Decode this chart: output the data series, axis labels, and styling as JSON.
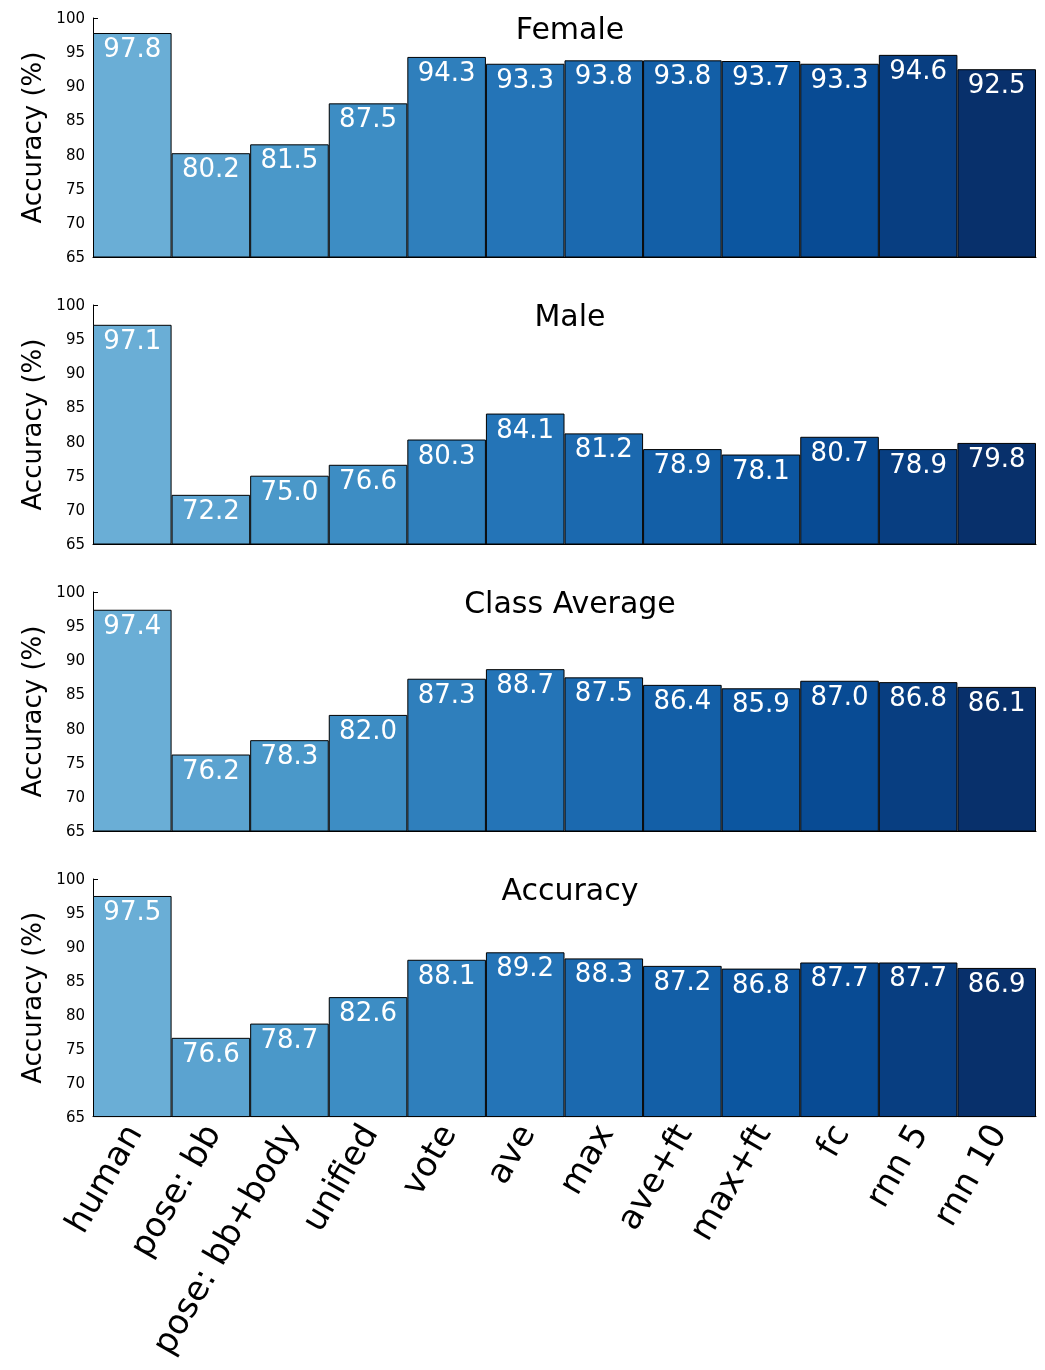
{
  "chart_data": [
    {
      "type": "bar",
      "title": "Female",
      "ylabel": "Accuracy (%)",
      "categories": [
        null,
        null,
        null,
        null,
        null,
        null,
        null,
        null,
        null,
        null,
        null,
        null
      ],
      "values": [
        97.8,
        80.2,
        81.5,
        87.5,
        94.3,
        93.3,
        93.8,
        93.8,
        93.7,
        93.3,
        94.6,
        92.5
      ],
      "value_labels": [
        "97.8",
        "80.2",
        "81.5",
        "87.5",
        "94.3",
        "93.3",
        "93.8",
        "93.8",
        "93.7",
        "93.3",
        "94.6",
        "92.5"
      ],
      "colors": [
        "#6aaed6",
        "#5ba3d0",
        "#4a98c9",
        "#3d8dc4",
        "#2f7fbc",
        "#2474b7",
        "#1b69af",
        "#135fa7",
        "#0c56a0",
        "#084b94",
        "#083e81",
        "#08306b"
      ],
      "ylim": [
        65,
        100
      ],
      "yticks": [
        65,
        70,
        75,
        80,
        85,
        90,
        95,
        100
      ],
      "grid": false,
      "tick_labels": "y"
    },
    {
      "type": "bar",
      "title": "Male",
      "ylabel": "Accuracy (%)",
      "categories": [
        null,
        null,
        null,
        null,
        null,
        null,
        null,
        null,
        null,
        null,
        null,
        null
      ],
      "values": [
        97.1,
        72.2,
        75.0,
        76.6,
        80.3,
        84.1,
        81.2,
        78.9,
        78.1,
        80.7,
        78.9,
        79.8
      ],
      "value_labels": [
        "97.1",
        "72.2",
        "75.0",
        "76.6",
        "80.3",
        "84.1",
        "81.2",
        "78.9",
        "78.1",
        "80.7",
        "78.9",
        "79.8"
      ],
      "colors": [
        "#6aaed6",
        "#5ba3d0",
        "#4a98c9",
        "#3d8dc4",
        "#2f7fbc",
        "#2474b7",
        "#1b69af",
        "#135fa7",
        "#0c56a0",
        "#084b94",
        "#083e81",
        "#08306b"
      ],
      "ylim": [
        65,
        100
      ],
      "yticks": [
        65,
        70,
        75,
        80,
        85,
        90,
        95,
        100
      ],
      "grid": false,
      "tick_labels": "y"
    },
    {
      "type": "bar",
      "title": "Class Average",
      "ylabel": "Accuracy (%)",
      "categories": [
        null,
        null,
        null,
        null,
        null,
        null,
        null,
        null,
        null,
        null,
        null,
        null
      ],
      "values": [
        97.4,
        76.2,
        78.3,
        82.0,
        87.3,
        88.7,
        87.5,
        86.4,
        85.9,
        87.0,
        86.8,
        86.1
      ],
      "value_labels": [
        "97.4",
        "76.2",
        "78.3",
        "82.0",
        "87.3",
        "88.7",
        "87.5",
        "86.4",
        "85.9",
        "87.0",
        "86.8",
        "86.1"
      ],
      "colors": [
        "#6aaed6",
        "#5ba3d0",
        "#4a98c9",
        "#3d8dc4",
        "#2f7fbc",
        "#2474b7",
        "#1b69af",
        "#135fa7",
        "#0c56a0",
        "#084b94",
        "#083e81",
        "#08306b"
      ],
      "ylim": [
        65,
        100
      ],
      "yticks": [
        65,
        70,
        75,
        80,
        85,
        90,
        95,
        100
      ],
      "grid": false,
      "tick_labels": "y"
    },
    {
      "type": "bar",
      "title": "Accuracy",
      "ylabel": "Accuracy (%)",
      "categories": [
        "human",
        "pose: bb",
        "pose: bb+body",
        "unified",
        "vote",
        "ave",
        "max",
        "ave+ft",
        "max+ft",
        "fc",
        "rnn 5",
        "rnn 10"
      ],
      "values": [
        97.5,
        76.6,
        78.7,
        82.6,
        88.1,
        89.2,
        88.3,
        87.2,
        86.8,
        87.7,
        87.7,
        86.9
      ],
      "value_labels": [
        "97.5",
        "76.6",
        "78.7",
        "82.6",
        "88.1",
        "89.2",
        "88.3",
        "87.2",
        "86.8",
        "87.7",
        "87.7",
        "86.9"
      ],
      "colors": [
        "#6aaed6",
        "#5ba3d0",
        "#4a98c9",
        "#3d8dc4",
        "#2f7fbc",
        "#2474b7",
        "#1b69af",
        "#135fa7",
        "#0c56a0",
        "#084b94",
        "#083e81",
        "#08306b"
      ],
      "ylim": [
        65,
        100
      ],
      "yticks": [
        65,
        70,
        75,
        80,
        85,
        90,
        95,
        100
      ],
      "grid": false
    }
  ]
}
